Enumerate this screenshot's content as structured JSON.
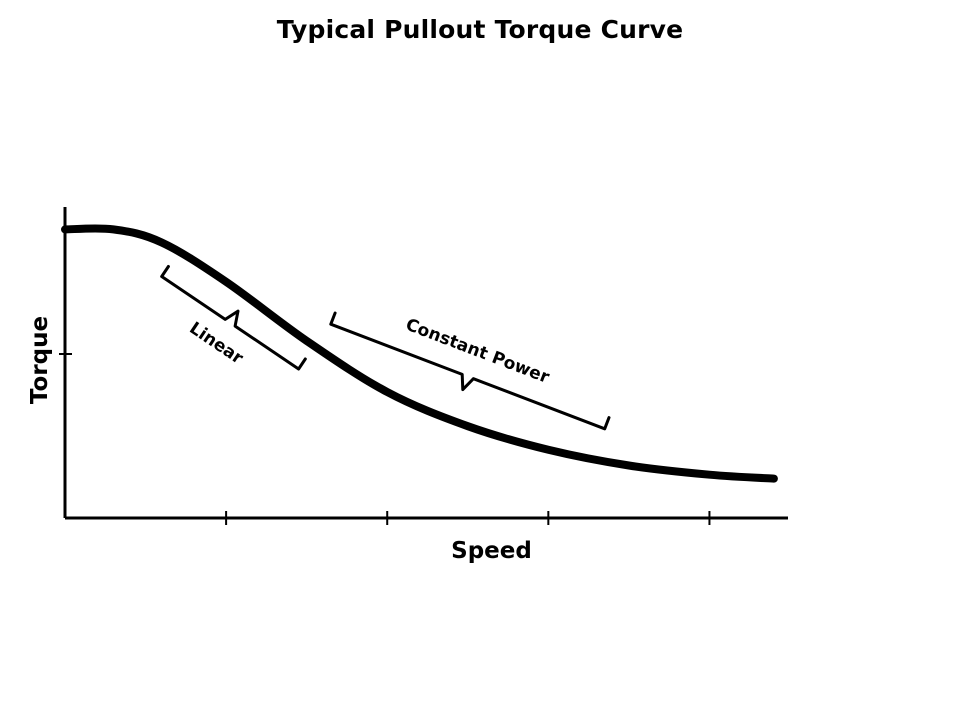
{
  "slide": {
    "title": "Typical Pullout Torque Curve"
  },
  "chart_data": {
    "type": "line",
    "xlabel": "Speed",
    "ylabel": "Torque",
    "xlim": [
      0,
      4.5
    ],
    "ylim": [
      0,
      2.5
    ],
    "x_ticks": [
      1,
      2,
      3,
      4
    ],
    "y_ticks": [
      1.25
    ],
    "grid": false,
    "series": [
      {
        "x": [
          0,
          0.3,
          0.6,
          1.0,
          1.5,
          2.0,
          2.5,
          3.0,
          3.5,
          4.0,
          4.4
        ],
        "values": [
          2.2,
          2.2,
          2.1,
          1.8,
          1.35,
          0.96,
          0.7,
          0.52,
          0.4,
          0.33,
          0.3
        ]
      }
    ],
    "annotations": [
      {
        "label": "Linear",
        "x_range": [
          0.6,
          1.45
        ]
      },
      {
        "label": "Constant Power",
        "x_range": [
          1.65,
          3.35
        ]
      }
    ],
    "colors": {
      "curve": "#000000",
      "axes": "#000000",
      "background": "#ffffff"
    }
  }
}
